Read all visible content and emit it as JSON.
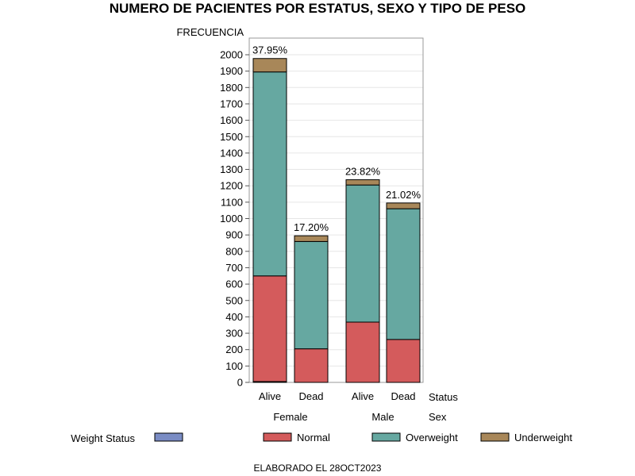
{
  "title": "NUMERO DE PACIENTES POR ESTATUS, SEXO Y TIPO DE PESO",
  "footer": "ELABORADO EL 28OCT2023",
  "colors": {
    "missing": "#7a8cc4",
    "normal": "#d45b5c",
    "overweight": "#66a8a1",
    "underweight": "#a88759"
  },
  "chart_data": {
    "type": "bar",
    "stacked": true,
    "ylabel": "FRECUENCIA",
    "ylim": [
      0,
      2100
    ],
    "yticks": [
      0,
      100,
      200,
      300,
      400,
      500,
      600,
      700,
      800,
      900,
      1000,
      1100,
      1200,
      1300,
      1400,
      1500,
      1600,
      1700,
      1800,
      1900,
      2000
    ],
    "grid": true,
    "categories": [
      {
        "status": "Alive",
        "sex": "Female"
      },
      {
        "status": "Dead",
        "sex": "Female"
      },
      {
        "status": "Alive",
        "sex": "Male"
      },
      {
        "status": "Dead",
        "sex": "Male"
      }
    ],
    "row_labels": {
      "status": "Status",
      "sex": "Sex"
    },
    "groups": [
      "Female",
      "Male"
    ],
    "series": [
      {
        "name": "",
        "color_key": "missing",
        "values": [
          5,
          0,
          0,
          0
        ]
      },
      {
        "name": "Normal",
        "color_key": "normal",
        "values": [
          645,
          205,
          368,
          262
        ]
      },
      {
        "name": "Overweight",
        "color_key": "overweight",
        "values": [
          1245,
          655,
          837,
          798
        ]
      },
      {
        "name": "Underweight",
        "color_key": "underweight",
        "values": [
          82,
          35,
          32,
          35
        ]
      }
    ],
    "bar_labels": [
      "37.95%",
      "17.20%",
      "23.82%",
      "21.02%"
    ],
    "legend": {
      "title": "Weight Status",
      "placement": "bottom",
      "entries": [
        {
          "label": "",
          "color_key": "missing"
        },
        {
          "label": "Normal",
          "color_key": "normal"
        },
        {
          "label": "Overweight",
          "color_key": "overweight"
        },
        {
          "label": "Underweight",
          "color_key": "underweight"
        }
      ]
    }
  }
}
